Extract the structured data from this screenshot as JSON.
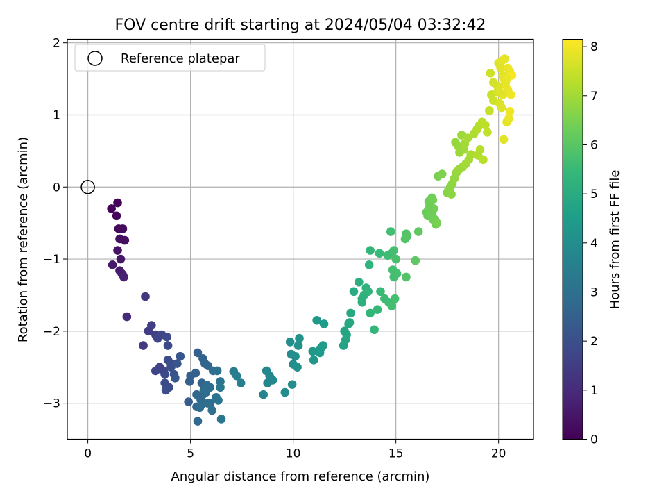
{
  "chart_data": {
    "type": "scatter",
    "title": "FOV centre drift starting at 2024/05/04 03:32:42",
    "xlabel": "Angular distance from reference (arcmin)",
    "ylabel": "Rotation from reference (arcmin)",
    "xlim": [
      -1.0,
      21.7
    ],
    "ylim": [
      -3.5,
      2.05
    ],
    "x_ticks": [
      0,
      5,
      10,
      15,
      20
    ],
    "y_ticks": [
      -3,
      -2,
      -1,
      0,
      1,
      2
    ],
    "x_tick_labels": [
      "0",
      "5",
      "10",
      "15",
      "20"
    ],
    "y_tick_labels": [
      "−3",
      "−2",
      "−1",
      "0",
      "1",
      "2"
    ],
    "grid": true,
    "legend": {
      "position": "top-left",
      "entries": [
        "Reference platepar"
      ]
    },
    "reference_point": {
      "x": 0,
      "y": 0
    },
    "colorbar": {
      "label": "Hours from first FF file",
      "range": [
        0,
        8.15
      ],
      "ticks": [
        0,
        1,
        2,
        3,
        4,
        5,
        6,
        7,
        8
      ],
      "tick_labels": [
        "0",
        "1",
        "2",
        "3",
        "4",
        "5",
        "6",
        "7",
        "8"
      ],
      "colormap": [
        "#440154",
        "#482878",
        "#3e4989",
        "#31688e",
        "#26828e",
        "#1f9e89",
        "#35b779",
        "#6ece58",
        "#b5de2b",
        "#fde725"
      ]
    },
    "series": [
      {
        "label_x": [
          1.45,
          1.15,
          1.4,
          1.5,
          1.7,
          1.55,
          1.8,
          1.45,
          1.6,
          1.55,
          1.65,
          1.2,
          1.7,
          1.75,
          1.9,
          2.8,
          2.7,
          2.95,
          3.1,
          3.3,
          3.4,
          3.6,
          3.85,
          3.9,
          4.05,
          3.7,
          3.5,
          3.3,
          3.75,
          3.9,
          4.05,
          4.2,
          4.35,
          4.5,
          3.95,
          3.75,
          3.8,
          4.25,
          4.9,
          5.35,
          5.6,
          5.7,
          5.85,
          5.55,
          5.25,
          5.0,
          4.95,
          5.3,
          5.5,
          5.6,
          5.75,
          5.85,
          5.95,
          6.05,
          6.25,
          6.35,
          6.45,
          6.5,
          6.3,
          6.1,
          5.95,
          5.8,
          5.55,
          5.35,
          5.45,
          5.65,
          5.3,
          6.45,
          7.1,
          7.25,
          7.45,
          8.55,
          8.7,
          8.85,
          8.75,
          9.0,
          9.6,
          9.95,
          10.0,
          10.2,
          10.1,
          10.25,
          9.85,
          9.9,
          10.3,
          11.0,
          11.3,
          11.4,
          11.5,
          11.15,
          10.95,
          11.3,
          11.45,
          12.45,
          12.55,
          12.6,
          12.5,
          12.7,
          12.8,
          12.75,
          12.95,
          13.2,
          13.35,
          13.45,
          13.55,
          13.35,
          13.7,
          13.75,
          13.95,
          13.65,
          14.1,
          14.25,
          14.45,
          14.65,
          14.95,
          14.8,
          14.9,
          15.05,
          14.9,
          14.75,
          14.8,
          15.0,
          14.85,
          14.6,
          13.75,
          14.2,
          15.5,
          15.45,
          15.55,
          15.5,
          15.95,
          16.1,
          16.5,
          16.6,
          16.75,
          16.65,
          16.55,
          16.8,
          16.95,
          16.7,
          16.85,
          16.9,
          17.0,
          16.75,
          16.6,
          16.8,
          17.05,
          17.25,
          17.5,
          17.65,
          17.7,
          17.55,
          17.75,
          17.85,
          17.95,
          18.0,
          18.1,
          18.25,
          18.4,
          18.55,
          18.65,
          18.3,
          18.1,
          18.05,
          17.9,
          18.2,
          18.35,
          18.5,
          18.8,
          18.95,
          19.05,
          19.2,
          19.35,
          19.45,
          19.1,
          19.0,
          19.25,
          19.55,
          19.65,
          19.75,
          19.95,
          20.05,
          20.15,
          20.25,
          20.4,
          20.5,
          20.55,
          20.6,
          20.45,
          20.35,
          20.25,
          20.2,
          20.1,
          20.0,
          20.15,
          20.3,
          20.45,
          20.55,
          20.65,
          20.4,
          20.3,
          20.2,
          20.05,
          19.95,
          19.75,
          19.6
        ],
        "label_y": [
          -0.22,
          -0.3,
          -0.4,
          -0.58,
          -0.58,
          -0.72,
          -0.74,
          -0.88,
          -1.0,
          -1.16,
          -1.2,
          -1.08,
          -1.22,
          -1.25,
          -1.8,
          -1.52,
          -2.2,
          -2.0,
          -1.92,
          -2.05,
          -2.1,
          -2.05,
          -2.08,
          -2.2,
          -2.45,
          -2.55,
          -2.5,
          -2.55,
          -2.6,
          -2.4,
          -2.5,
          -2.6,
          -2.45,
          -2.35,
          -2.78,
          -2.72,
          -2.82,
          -2.65,
          -2.98,
          -2.3,
          -2.38,
          -2.45,
          -2.48,
          -2.72,
          -2.58,
          -2.62,
          -2.7,
          -3.05,
          -2.95,
          -2.88,
          -2.85,
          -3.0,
          -3.0,
          -3.1,
          -2.92,
          -2.96,
          -2.7,
          -3.22,
          -2.55,
          -2.55,
          -2.78,
          -2.75,
          -3.02,
          -3.25,
          -3.06,
          -2.82,
          -2.88,
          -2.78,
          -2.56,
          -2.62,
          -2.72,
          -2.88,
          -2.55,
          -2.62,
          -2.72,
          -2.68,
          -2.85,
          -2.74,
          -2.46,
          -2.5,
          -2.35,
          -2.2,
          -2.15,
          -2.32,
          -2.1,
          -2.4,
          -2.25,
          -2.22,
          -1.9,
          -1.85,
          -2.28,
          -2.3,
          -2.2,
          -2.2,
          -2.12,
          -2.05,
          -2.0,
          -1.9,
          -1.75,
          -1.88,
          -1.45,
          -1.32,
          -1.55,
          -1.5,
          -1.4,
          -1.6,
          -1.08,
          -1.75,
          -1.98,
          -1.45,
          -1.7,
          -1.45,
          -1.55,
          -1.6,
          -1.55,
          -1.65,
          -1.25,
          -1.2,
          -0.88,
          -0.62,
          -0.92,
          -1.0,
          -1.15,
          -0.95,
          -0.88,
          -0.92,
          -0.65,
          -0.72,
          -0.68,
          -1.25,
          -1.02,
          -0.62,
          -0.35,
          -0.2,
          -0.15,
          -0.25,
          -0.4,
          -0.45,
          -0.52,
          -0.3,
          -0.3,
          -0.45,
          -0.5,
          -0.38,
          -0.3,
          -0.18,
          0.15,
          0.18,
          -0.08,
          0.0,
          -0.1,
          -0.05,
          0.05,
          0.12,
          0.2,
          0.22,
          0.25,
          0.28,
          0.32,
          0.38,
          0.45,
          0.52,
          0.48,
          0.56,
          0.62,
          0.72,
          0.6,
          0.68,
          0.74,
          0.8,
          0.85,
          0.9,
          0.86,
          0.76,
          0.52,
          0.44,
          0.38,
          1.06,
          1.28,
          1.2,
          1.32,
          1.16,
          1.1,
          0.66,
          0.9,
          0.95,
          1.05,
          1.28,
          1.35,
          1.45,
          1.5,
          1.55,
          1.65,
          1.72,
          1.75,
          1.78,
          1.65,
          1.6,
          1.55,
          1.5,
          1.42,
          1.28,
          1.32,
          1.4,
          1.45,
          1.58,
          1.4,
          1.25,
          0.92,
          0.86
        ],
        "hours": [
          0.05,
          0.1,
          0.15,
          0.2,
          0.25,
          0.3,
          0.35,
          0.4,
          0.5,
          0.6,
          0.65,
          0.55,
          0.7,
          0.75,
          1.0,
          1.3,
          1.4,
          1.45,
          1.5,
          1.6,
          1.7,
          1.75,
          1.8,
          1.85,
          1.9,
          1.8,
          1.65,
          1.7,
          1.85,
          1.95,
          2.0,
          2.1,
          2.15,
          2.2,
          1.95,
          1.9,
          1.95,
          2.25,
          2.4,
          2.5,
          2.55,
          2.6,
          2.65,
          2.6,
          2.5,
          2.45,
          2.45,
          2.7,
          2.75,
          2.8,
          2.85,
          2.9,
          2.95,
          3.0,
          3.05,
          3.1,
          3.15,
          3.2,
          3.1,
          3.0,
          2.95,
          2.9,
          2.85,
          2.8,
          2.85,
          2.9,
          2.75,
          3.25,
          3.4,
          3.45,
          3.5,
          3.7,
          3.75,
          3.8,
          3.75,
          3.85,
          3.95,
          4.0,
          4.05,
          4.1,
          4.05,
          4.1,
          4.0,
          4.0,
          4.15,
          4.3,
          4.4,
          4.45,
          4.5,
          4.35,
          4.3,
          4.4,
          4.45,
          4.7,
          4.75,
          4.8,
          4.75,
          4.85,
          4.9,
          4.9,
          5.0,
          5.1,
          5.15,
          5.2,
          5.25,
          5.15,
          5.3,
          5.35,
          5.4,
          5.3,
          5.45,
          5.5,
          5.55,
          5.6,
          5.7,
          5.65,
          5.68,
          5.72,
          5.7,
          5.65,
          5.68,
          5.75,
          5.7,
          5.6,
          5.35,
          5.5,
          5.9,
          5.9,
          5.95,
          5.92,
          6.05,
          6.1,
          6.25,
          6.3,
          6.35,
          6.3,
          6.28,
          6.35,
          6.4,
          6.33,
          6.38,
          6.4,
          6.45,
          6.35,
          6.3,
          6.38,
          6.45,
          6.55,
          6.65,
          6.7,
          6.72,
          6.68,
          6.75,
          6.8,
          6.85,
          6.88,
          6.9,
          6.95,
          7.0,
          7.05,
          7.1,
          6.98,
          6.92,
          6.9,
          6.86,
          6.94,
          7.0,
          7.05,
          7.15,
          7.2,
          7.25,
          7.3,
          7.35,
          7.4,
          7.25,
          7.2,
          7.3,
          7.45,
          7.5,
          7.55,
          7.65,
          7.7,
          7.75,
          7.8,
          7.85,
          7.9,
          7.95,
          8.0,
          7.92,
          7.88,
          7.85,
          7.82,
          7.78,
          7.75,
          7.8,
          7.86,
          7.92,
          7.96,
          8.05,
          7.9,
          7.86,
          7.82,
          7.76,
          7.72,
          7.62,
          7.55
        ]
      }
    ]
  }
}
